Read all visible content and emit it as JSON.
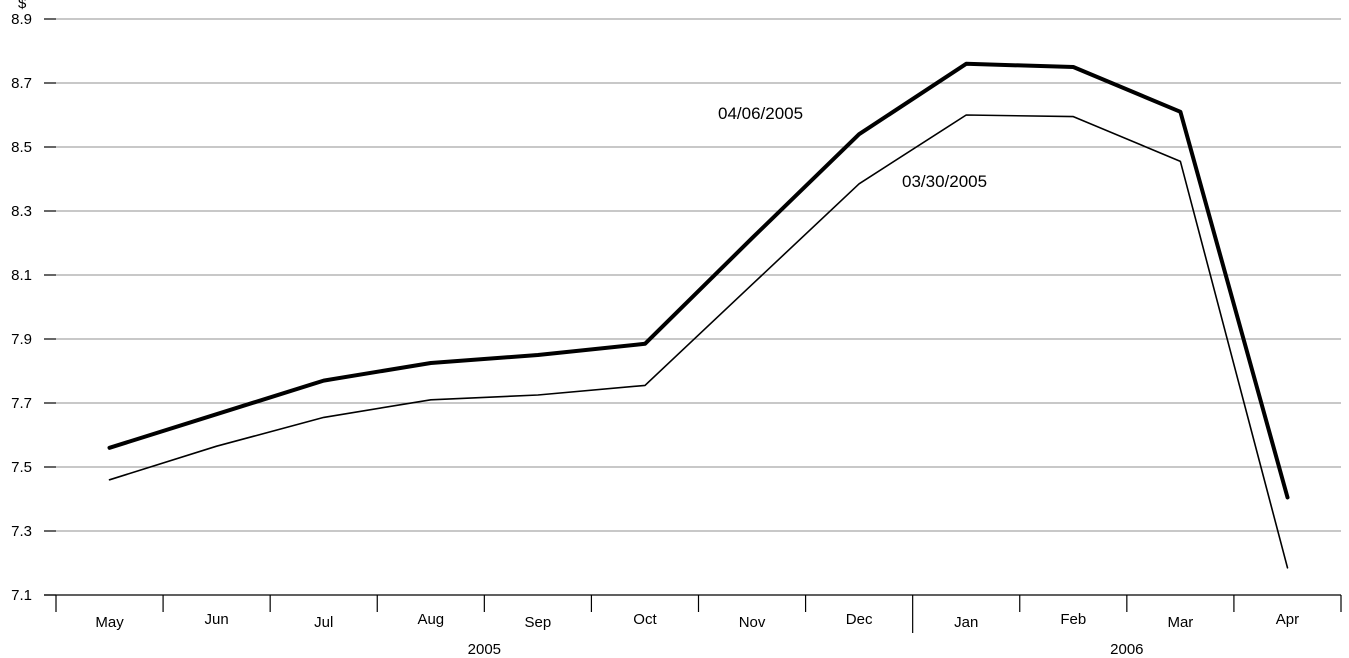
{
  "chart_data": {
    "type": "line",
    "y_unit": "$",
    "ylim": [
      7.1,
      8.9
    ],
    "yticks": [
      7.1,
      7.3,
      7.5,
      7.7,
      7.9,
      8.1,
      8.3,
      8.5,
      8.7,
      8.9
    ],
    "ytick_labels": [
      "7.1",
      "7.3",
      "7.5",
      "7.7",
      "7.9",
      "8.1",
      "8.3",
      "8.5",
      "8.7",
      "8.9"
    ],
    "grid": true,
    "categories": [
      "May",
      "Jun",
      "Jul",
      "Aug",
      "Sep",
      "Oct",
      "Nov",
      "Dec",
      "Jan",
      "Feb",
      "Mar",
      "Apr"
    ],
    "year_groups": [
      {
        "label": "2005",
        "start": 0,
        "end": 7
      },
      {
        "label": "2006",
        "start": 8,
        "end": 11
      }
    ],
    "series": [
      {
        "name": "04/06/2005",
        "values": [
          7.56,
          7.665,
          7.77,
          7.825,
          7.85,
          7.885,
          8.215,
          8.54,
          8.76,
          8.75,
          8.61,
          7.405
        ],
        "color": "#000000",
        "style": "thick"
      },
      {
        "name": "03/30/2005",
        "values": [
          7.46,
          7.565,
          7.655,
          7.71,
          7.725,
          7.755,
          8.07,
          8.385,
          8.6,
          8.595,
          8.455,
          7.185
        ],
        "color": "#000000",
        "style": "thin"
      }
    ],
    "annotations": [
      {
        "text": "04/06/2005",
        "series": 0,
        "near_category": "Oct-Nov",
        "position": "above line"
      },
      {
        "text": "03/30/2005",
        "series": 1,
        "near_category": "Dec-Jan",
        "position": "right of line"
      }
    ]
  }
}
